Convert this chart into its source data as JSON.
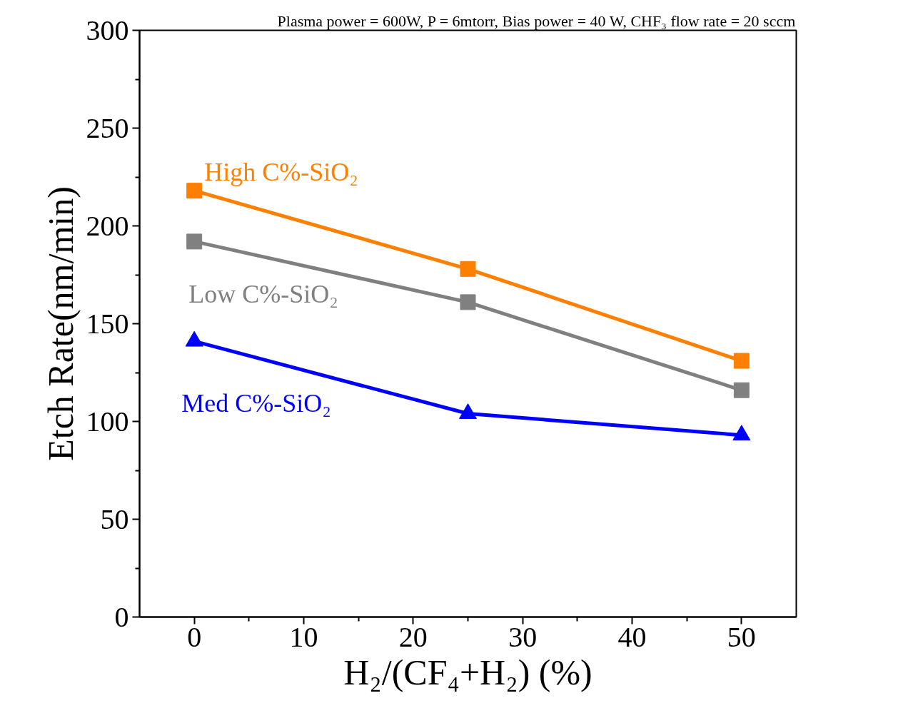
{
  "chart_data": {
    "type": "line",
    "title": "Plasma power = 600W, P = 6mtorr, Bias power = 40 W, CHF₃ flow rate = 20 sccm",
    "xlabel": "H₂/(CF₄+H₂) (%)",
    "ylabel": "Etch Rate(nm/min)",
    "x": [
      0,
      25,
      50
    ],
    "series": [
      {
        "name": "High C%-SiO₂",
        "color": "#ff7f00",
        "marker": "square",
        "values": [
          218,
          178,
          131
        ]
      },
      {
        "name": "Low C%-SiO₂",
        "color": "#808080",
        "marker": "square",
        "values": [
          192,
          161,
          116
        ]
      },
      {
        "name": "Med C%-SiO₂",
        "color": "#0000ff",
        "marker": "triangle",
        "values": [
          141,
          104,
          93
        ]
      }
    ],
    "xlim": [
      -5,
      55
    ],
    "ylim": [
      0,
      300
    ],
    "xticks": [
      0,
      10,
      20,
      30,
      40,
      50
    ],
    "yticks": [
      0,
      50,
      100,
      150,
      200,
      250,
      300
    ],
    "grid": false,
    "legend": false,
    "line_style": "solid"
  }
}
